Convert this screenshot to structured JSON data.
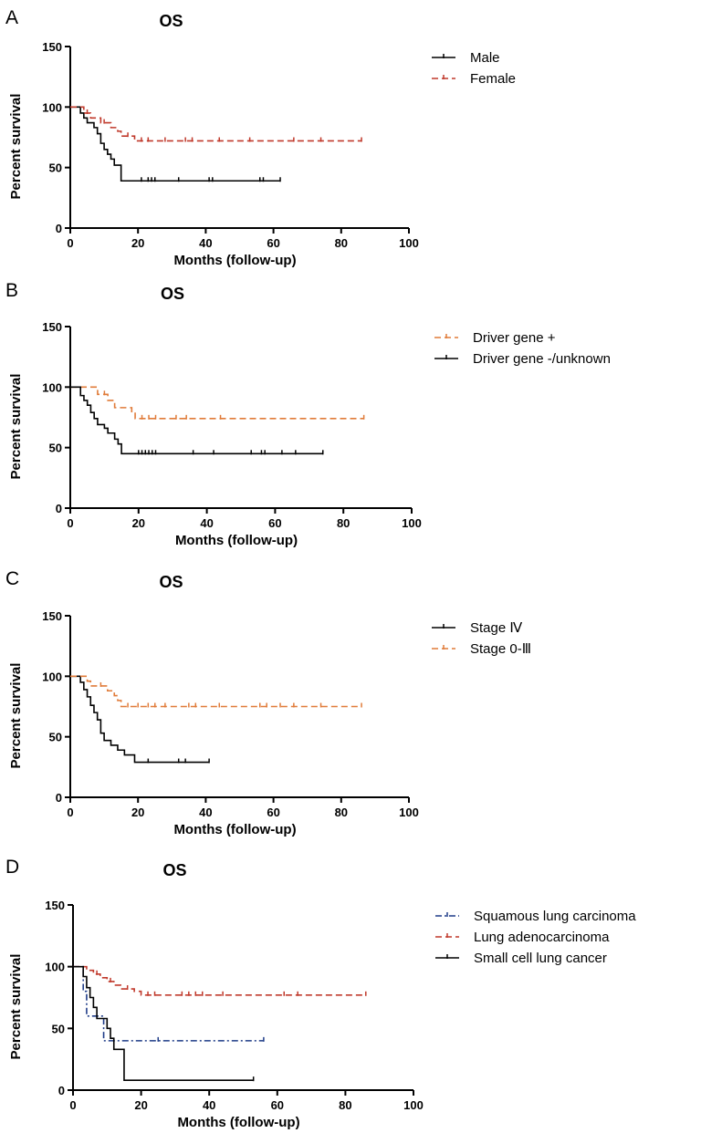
{
  "chart_data": [
    {
      "type": "line",
      "panel": "A",
      "title": "OS",
      "xlabel": "Months (follow-up)",
      "ylabel": "Percent survival",
      "xlim": [
        0,
        100
      ],
      "ylim": [
        0,
        150
      ],
      "xticks": [
        0,
        20,
        40,
        60,
        80,
        100
      ],
      "yticks": [
        0,
        50,
        100,
        150
      ],
      "grid": false,
      "legend_position": "right",
      "series": [
        {
          "name": "Male",
          "color": "#000000",
          "dash": "solid",
          "steps": [
            [
              0,
              100
            ],
            [
              3,
              95
            ],
            [
              4,
              91
            ],
            [
              5,
              87
            ],
            [
              7,
              83
            ],
            [
              8,
              78
            ],
            [
              9,
              70
            ],
            [
              10,
              65
            ],
            [
              11,
              61
            ],
            [
              12,
              57
            ],
            [
              13,
              52
            ],
            [
              15,
              48
            ],
            [
              15,
              39
            ],
            [
              62,
              39
            ]
          ],
          "censors": [
            21,
            23,
            24,
            25,
            32,
            41,
            42,
            56,
            57,
            62
          ]
        },
        {
          "name": "Female",
          "color": "#c0392b",
          "dash": "dashed",
          "steps": [
            [
              0,
              100
            ],
            [
              4,
              95
            ],
            [
              6,
              91
            ],
            [
              9,
              87
            ],
            [
              12,
              83
            ],
            [
              14,
              80
            ],
            [
              15,
              76
            ],
            [
              18,
              76
            ],
            [
              19,
              72
            ],
            [
              86,
              72
            ]
          ],
          "censors": [
            5,
            10,
            17,
            21,
            23,
            28,
            34,
            36,
            44,
            53,
            66,
            74,
            86
          ]
        }
      ]
    },
    {
      "type": "line",
      "panel": "B",
      "title": "OS",
      "xlabel": "Months (follow-up)",
      "ylabel": "Percent survival",
      "xlim": [
        0,
        100
      ],
      "ylim": [
        0,
        150
      ],
      "xticks": [
        0,
        20,
        40,
        60,
        80,
        100
      ],
      "yticks": [
        0,
        50,
        100,
        150
      ],
      "grid": false,
      "legend_position": "right",
      "series": [
        {
          "name": "Driver gene +",
          "color": "#e07b39",
          "dash": "dashed",
          "steps": [
            [
              0,
              100
            ],
            [
              8,
              94
            ],
            [
              11,
              89
            ],
            [
              13,
              83
            ],
            [
              18,
              79
            ],
            [
              19,
              74
            ],
            [
              86,
              74
            ]
          ],
          "censors": [
            10,
            21,
            23,
            25,
            31,
            34,
            44,
            86
          ]
        },
        {
          "name": "Driver gene -/unknown",
          "color": "#000000",
          "dash": "solid",
          "steps": [
            [
              0,
              100
            ],
            [
              3,
              93
            ],
            [
              4,
              89
            ],
            [
              5,
              85
            ],
            [
              6,
              79
            ],
            [
              7,
              74
            ],
            [
              8,
              69
            ],
            [
              10,
              66
            ],
            [
              11,
              62
            ],
            [
              13,
              57
            ],
            [
              14,
              53
            ],
            [
              15,
              45
            ],
            [
              74,
              45
            ]
          ],
          "censors": [
            20,
            21,
            22,
            23,
            24,
            25,
            36,
            42,
            53,
            56,
            57,
            62,
            66,
            74
          ]
        }
      ]
    },
    {
      "type": "line",
      "panel": "C",
      "title": "OS",
      "xlabel": "Months (follow-up)",
      "ylabel": "Percent survival",
      "xlim": [
        0,
        100
      ],
      "ylim": [
        0,
        150
      ],
      "xticks": [
        0,
        20,
        40,
        60,
        80,
        100
      ],
      "yticks": [
        0,
        50,
        100,
        150
      ],
      "grid": false,
      "legend_position": "right",
      "series": [
        {
          "name": "Stage Ⅳ",
          "color": "#000000",
          "dash": "solid",
          "steps": [
            [
              0,
              100
            ],
            [
              3,
              95
            ],
            [
              4,
              89
            ],
            [
              5,
              83
            ],
            [
              6,
              76
            ],
            [
              7,
              70
            ],
            [
              8,
              64
            ],
            [
              9,
              53
            ],
            [
              10,
              47
            ],
            [
              12,
              43
            ],
            [
              14,
              39
            ],
            [
              16,
              35
            ],
            [
              19,
              29
            ],
            [
              41,
              29
            ]
          ],
          "censors": [
            23,
            32,
            34,
            41
          ]
        },
        {
          "name": "Stage 0-Ⅲ",
          "color": "#e07b39",
          "dash": "dashed",
          "steps": [
            [
              0,
              100
            ],
            [
              5,
              96
            ],
            [
              6,
              92
            ],
            [
              11,
              88
            ],
            [
              13,
              84
            ],
            [
              14,
              80
            ],
            [
              15,
              75
            ],
            [
              86,
              75
            ]
          ],
          "censors": [
            9,
            17,
            20,
            23,
            25,
            28,
            35,
            37,
            44,
            56,
            58,
            62,
            66,
            74,
            86
          ]
        }
      ]
    },
    {
      "type": "line",
      "panel": "D",
      "title": "OS",
      "xlabel": "Months (follow-up)",
      "ylabel": "Percent survival",
      "xlim": [
        0,
        100
      ],
      "ylim": [
        0,
        150
      ],
      "xticks": [
        0,
        20,
        40,
        60,
        80,
        100
      ],
      "yticks": [
        0,
        50,
        100,
        150
      ],
      "grid": false,
      "legend_position": "right",
      "series": [
        {
          "name": "Squamous lung carcinoma",
          "color": "#1f3c88",
          "dash": "dashdot",
          "steps": [
            [
              0,
              100
            ],
            [
              3,
              80
            ],
            [
              4,
              60
            ],
            [
              8,
              60
            ],
            [
              9,
              40
            ],
            [
              56,
              40
            ]
          ],
          "censors": [
            25,
            56
          ]
        },
        {
          "name": "Lung adenocarcinoma",
          "color": "#c0392b",
          "dash": "dashed",
          "steps": [
            [
              0,
              100
            ],
            [
              4,
              97
            ],
            [
              6,
              94
            ],
            [
              8,
              91
            ],
            [
              10,
              88
            ],
            [
              12,
              85
            ],
            [
              14,
              82
            ],
            [
              18,
              80
            ],
            [
              20,
              77
            ],
            [
              86,
              77
            ]
          ],
          "censors": [
            7,
            11,
            16,
            22,
            24,
            32,
            34,
            36,
            38,
            44,
            62,
            66,
            86
          ]
        },
        {
          "name": "Small cell lung cancer",
          "color": "#000000",
          "dash": "solid",
          "steps": [
            [
              0,
              100
            ],
            [
              3,
              92
            ],
            [
              4,
              83
            ],
            [
              5,
              75
            ],
            [
              6,
              67
            ],
            [
              7,
              58
            ],
            [
              10,
              50
            ],
            [
              11,
              42
            ],
            [
              12,
              33
            ],
            [
              15,
              8
            ],
            [
              53,
              8
            ]
          ],
          "censors": [
            53
          ]
        }
      ]
    }
  ]
}
